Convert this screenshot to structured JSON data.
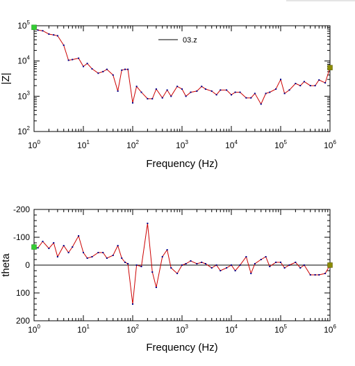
{
  "chart_data": [
    {
      "type": "line",
      "xlabel": "Frequency (Hz)",
      "ylabel": "|Z|",
      "x_scale": "log",
      "y_scale": "log",
      "xlim": [
        1,
        1000000
      ],
      "ylim": [
        100,
        100000
      ],
      "x_ticks": [
        {
          "base": "10",
          "exp": "0"
        },
        {
          "base": "10",
          "exp": "1"
        },
        {
          "base": "10",
          "exp": "2"
        },
        {
          "base": "10",
          "exp": "3"
        },
        {
          "base": "10",
          "exp": "4"
        },
        {
          "base": "10",
          "exp": "5"
        },
        {
          "base": "10",
          "exp": "6"
        }
      ],
      "y_ticks": [
        {
          "base": "10",
          "exp": "2"
        },
        {
          "base": "10",
          "exp": "3"
        },
        {
          "base": "10",
          "exp": "4"
        },
        {
          "base": "10",
          "exp": "5"
        }
      ],
      "legend": {
        "label": "03.z",
        "placement": "top-center"
      },
      "series_color": "#cc0000",
      "point_color": "#00008b",
      "start_marker_color": "#33cc33",
      "end_marker_color": "#8b8b00",
      "series": [
        {
          "name": "03.z",
          "x": [
            1,
            1.2,
            1.5,
            2,
            2.5,
            3,
            4,
            5,
            6,
            8,
            10,
            12,
            15,
            20,
            25,
            30,
            40,
            50,
            60,
            70,
            80,
            100,
            120,
            150,
            200,
            250,
            300,
            400,
            500,
            600,
            800,
            1000,
            1200,
            1500,
            2000,
            2500,
            3000,
            4000,
            5000,
            6000,
            8000,
            10000,
            12000,
            15000,
            20000,
            25000,
            30000,
            40000,
            50000,
            60000,
            80000,
            100000,
            120000,
            150000,
            200000,
            250000,
            300000,
            400000,
            500000,
            600000,
            800000,
            1000000
          ],
          "y": [
            90000,
            75000,
            72000,
            58000,
            55000,
            52000,
            28000,
            10500,
            11000,
            12000,
            7000,
            8500,
            6000,
            4500,
            5000,
            5800,
            4000,
            1400,
            5500,
            5800,
            5800,
            650,
            1900,
            1300,
            850,
            850,
            1600,
            900,
            1500,
            1000,
            1900,
            1600,
            1000,
            1300,
            1400,
            1900,
            1600,
            1400,
            1100,
            1500,
            1500,
            1100,
            1300,
            1300,
            900,
            900,
            1200,
            600,
            1200,
            1300,
            1600,
            3000,
            1200,
            1500,
            2300,
            2000,
            2600,
            2000,
            2000,
            2900,
            2400,
            6500
          ]
        }
      ]
    },
    {
      "type": "line",
      "xlabel": "Frequency (Hz)",
      "ylabel": "theta",
      "x_scale": "log",
      "y_scale": "linear",
      "y_inverted": true,
      "xlim": [
        1,
        1000000
      ],
      "ylim": [
        -200,
        200
      ],
      "zero_line": true,
      "x_ticks": [
        {
          "base": "10",
          "exp": "0"
        },
        {
          "base": "10",
          "exp": "1"
        },
        {
          "base": "10",
          "exp": "2"
        },
        {
          "base": "10",
          "exp": "3"
        },
        {
          "base": "10",
          "exp": "4"
        },
        {
          "base": "10",
          "exp": "5"
        },
        {
          "base": "10",
          "exp": "6"
        }
      ],
      "y_tick_values": [
        -200,
        -100,
        0,
        100,
        200
      ],
      "y_tick_labels": [
        "-200",
        "-100",
        "0",
        "100",
        "200"
      ],
      "series_color": "#cc0000",
      "point_color": "#00008b",
      "start_marker_color": "#33cc33",
      "end_marker_color": "#8b8b00",
      "series": [
        {
          "x": [
            1,
            1.2,
            1.5,
            2,
            2.5,
            3,
            4,
            5,
            6,
            8,
            10,
            12,
            15,
            20,
            25,
            30,
            40,
            50,
            60,
            70,
            80,
            100,
            120,
            150,
            200,
            250,
            300,
            400,
            500,
            600,
            800,
            1000,
            1200,
            1500,
            2000,
            2500,
            3000,
            4000,
            5000,
            6000,
            8000,
            10000,
            12000,
            15000,
            20000,
            25000,
            30000,
            40000,
            50000,
            60000,
            80000,
            100000,
            120000,
            150000,
            200000,
            250000,
            300000,
            400000,
            500000,
            600000,
            800000,
            1000000
          ],
          "y": [
            -65,
            -62,
            -85,
            -60,
            -80,
            -30,
            -70,
            -45,
            -65,
            -105,
            -45,
            -25,
            -30,
            -45,
            -45,
            -25,
            -35,
            -70,
            -25,
            -10,
            -5,
            140,
            0,
            5,
            -150,
            25,
            80,
            -30,
            -55,
            10,
            30,
            0,
            -5,
            -15,
            -5,
            -10,
            -5,
            10,
            0,
            20,
            10,
            0,
            20,
            0,
            -30,
            30,
            -5,
            -20,
            -30,
            5,
            -10,
            -10,
            10,
            0,
            -10,
            10,
            0,
            35,
            35,
            35,
            30,
            0
          ]
        }
      ]
    }
  ]
}
